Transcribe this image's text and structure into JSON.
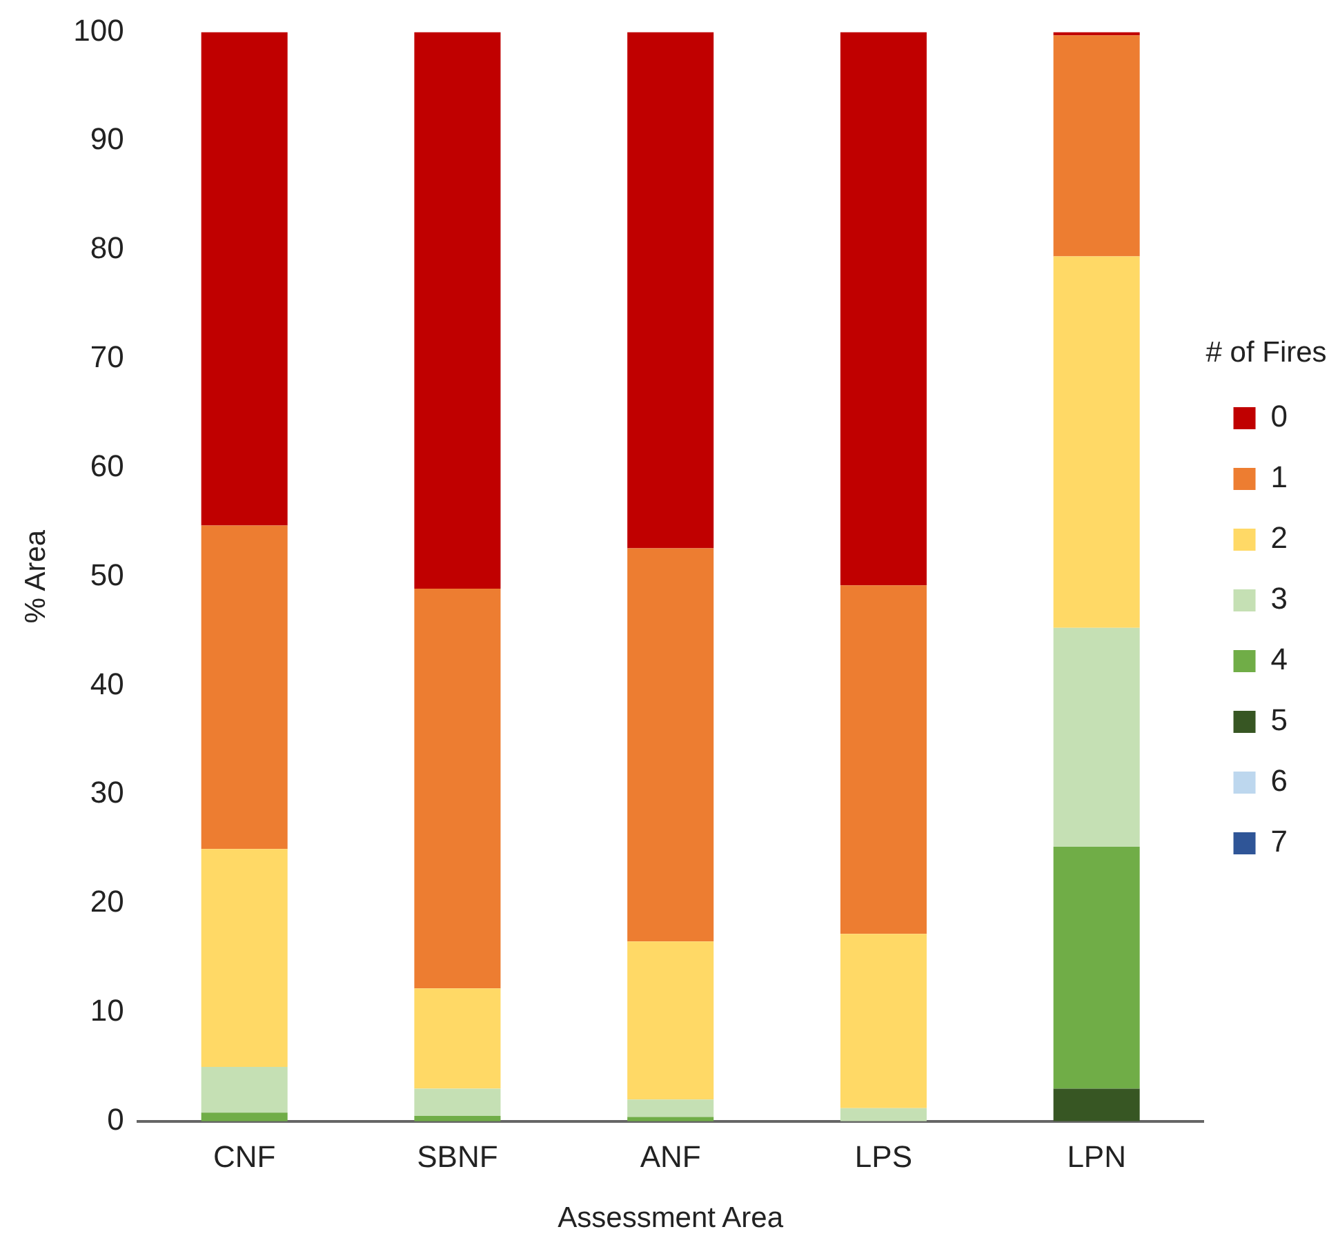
{
  "chart_data": {
    "type": "bar",
    "stacked": true,
    "xlabel": "Assessment Area",
    "ylabel": "% Area",
    "legend_title": "# of Fires",
    "legend": "right",
    "categories": [
      "CNF",
      "SBNF",
      "ANF",
      "LPS",
      "LPN"
    ],
    "ylim": [
      0,
      100
    ],
    "yticks": [
      0,
      10,
      20,
      30,
      40,
      50,
      60,
      70,
      80,
      90,
      100
    ],
    "grid": false,
    "series": [
      {
        "name": "7",
        "color": "#2f5597",
        "values": [
          0,
          0,
          0,
          0,
          0
        ]
      },
      {
        "name": "6",
        "color": "#bdd7ee",
        "values": [
          0,
          0,
          0,
          0,
          0
        ]
      },
      {
        "name": "5",
        "color": "#375623",
        "values": [
          0,
          0,
          0,
          0,
          3.0
        ]
      },
      {
        "name": "4",
        "color": "#70ad47",
        "values": [
          0.8,
          0.5,
          0.4,
          0,
          22.2
        ]
      },
      {
        "name": "3",
        "color": "#c5e0b4",
        "values": [
          4.2,
          2.5,
          1.6,
          1.2,
          20.1
        ]
      },
      {
        "name": "2",
        "color": "#ffd966",
        "values": [
          20,
          9.2,
          14.5,
          16,
          34.1
        ]
      },
      {
        "name": "1",
        "color": "#ed7d31",
        "values": [
          29.7,
          36.7,
          36.1,
          32,
          20.3
        ]
      },
      {
        "name": "0",
        "color": "#c00000",
        "values": [
          45.3,
          51.1,
          47.4,
          50.8,
          0.3
        ]
      }
    ]
  }
}
